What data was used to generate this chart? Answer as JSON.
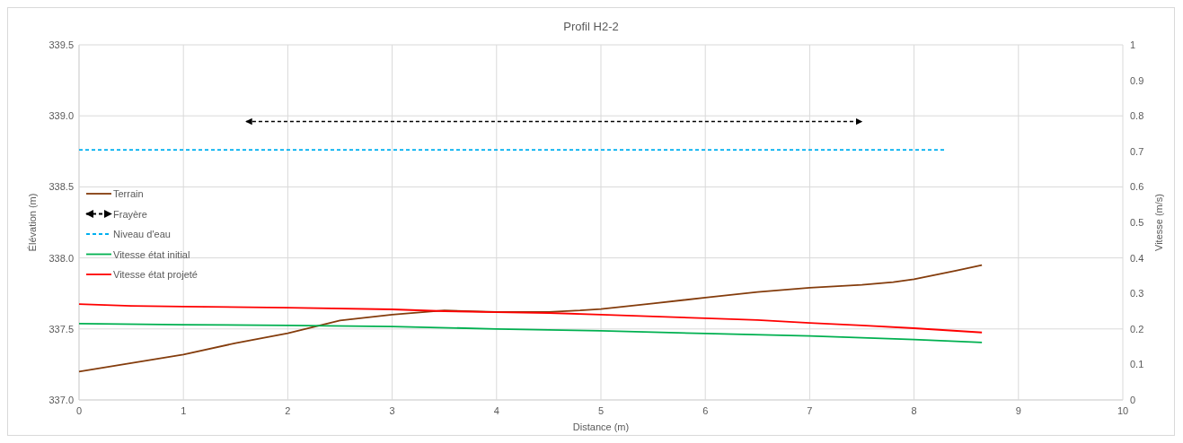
{
  "chart_data": {
    "type": "line",
    "title": "Profil H2-2",
    "xlabel": "Distance (m)",
    "ylabel": "Élévation (m)",
    "y2label": "Vitesse (m/s)",
    "xlim": [
      0,
      10
    ],
    "xticks": [
      0,
      1,
      2,
      3,
      4,
      5,
      6,
      7,
      8,
      9,
      10
    ],
    "ylim": [
      337,
      339.5
    ],
    "yticks": [
      {
        "value": 337,
        "label": "337.0"
      },
      {
        "value": 337.5,
        "label": "337.5"
      },
      {
        "value": 338,
        "label": "338.0"
      },
      {
        "value": 338.5,
        "label": "338.5"
      },
      {
        "value": 339,
        "label": "339.0"
      },
      {
        "value": 339.5,
        "label": "339.5"
      }
    ],
    "y2lim": [
      0,
      1
    ],
    "y2ticks": [
      0,
      0.1,
      0.2,
      0.3,
      0.4,
      0.5,
      0.6,
      0.7,
      0.8,
      0.9,
      1
    ],
    "grid": true,
    "legend": "left",
    "marker": "none",
    "series": [
      {
        "name": "Terrain",
        "color": "#843c0c",
        "x": [
          0,
          0.5,
          1,
          1.5,
          2,
          2.5,
          3,
          3.5,
          4,
          4.5,
          4.8,
          5,
          5.5,
          6,
          6.5,
          7,
          7.5,
          7.8,
          8,
          8.4,
          8.65
        ],
        "values": [
          337.2,
          337.26,
          337.32,
          337.4,
          337.47,
          337.56,
          337.6,
          337.63,
          337.62,
          337.62,
          337.63,
          337.64,
          337.68,
          337.72,
          337.76,
          337.79,
          337.81,
          337.83,
          337.85,
          337.91,
          337.95
        ]
      },
      {
        "name": "Frayère",
        "color": "#000000",
        "line_style": "dashed",
        "x": [
          1.6,
          7.5
        ],
        "values": [
          338.96,
          338.96
        ]
      },
      {
        "name": "Niveau d'eau",
        "color": "#00b0f0",
        "line_style": "dashed",
        "x": [
          0,
          8.3
        ],
        "values": [
          338.76,
          338.76
        ]
      },
      {
        "name": "Vitesse état initial",
        "color": "#00b050",
        "axis": "y2",
        "x": [
          0,
          1,
          2,
          3,
          4,
          5,
          6,
          7,
          8,
          8.65
        ],
        "values": [
          0.215,
          0.212,
          0.21,
          0.207,
          0.2,
          0.195,
          0.187,
          0.18,
          0.17,
          0.162
        ]
      },
      {
        "name": "Vitesse état projeté",
        "color": "#ff0000",
        "axis": "y2",
        "x": [
          0,
          0.5,
          1,
          2,
          3,
          3.5,
          4,
          4.5,
          5,
          5.5,
          6,
          6.5,
          7,
          7.5,
          8,
          8.65
        ],
        "values": [
          0.27,
          0.265,
          0.263,
          0.26,
          0.255,
          0.25,
          0.247,
          0.245,
          0.24,
          0.235,
          0.23,
          0.225,
          0.217,
          0.21,
          0.202,
          0.19
        ]
      }
    ]
  }
}
